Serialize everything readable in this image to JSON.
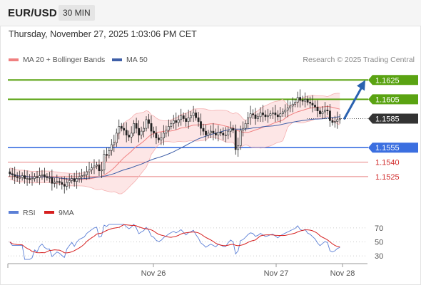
{
  "header": {
    "symbol": "EUR/USD",
    "timeframe": "30 MIN",
    "datetime": "Thursday, November 27, 2025 1:03:06 PM CET"
  },
  "colors": {
    "up": "#2e7d32",
    "down": "#c62828",
    "ma20": "#f08080",
    "bollinger_fill": "#fde2e2",
    "ma50": "#3f5fa8",
    "resistance": "#5aa312",
    "support": "#3b6fe0",
    "support_weak": "#e88080",
    "current": "#333333",
    "rsi": "#5b7fd6",
    "rsi_ma": "#d62020",
    "arrow": "#2a62b0"
  },
  "chart_data": [
    {
      "type": "candlestick",
      "legend": [
        {
          "name": "MA 20 + Bollinger Bands",
          "color": "#f08080"
        },
        {
          "name": "MA 50",
          "color": "#3f5fa8"
        }
      ],
      "source_note": "Research © 2025 Trading Central",
      "ylim": [
        1.1505,
        1.1637
      ],
      "x_ticks": [
        "Nov 26",
        "Nov 27",
        "Nov 28"
      ],
      "levels": [
        {
          "value": 1.1625,
          "label": "1.1625",
          "kind": "resistance"
        },
        {
          "value": 1.1605,
          "label": "1.1605",
          "kind": "resistance"
        },
        {
          "value": 1.1585,
          "label": "1.1585",
          "kind": "current"
        },
        {
          "value": 1.1555,
          "label": "1.1555",
          "kind": "support"
        },
        {
          "value": 1.154,
          "label": "1.1540",
          "kind": "support_weak"
        },
        {
          "value": 1.1525,
          "label": "1.1525",
          "kind": "support_weak"
        }
      ],
      "projection": {
        "from": 1.1585,
        "to": 1.1622
      },
      "close": [
        1.1528,
        1.1527,
        1.1525,
        1.1524,
        1.1524,
        1.1526,
        1.1523,
        1.1523,
        1.1522,
        1.1523,
        1.1525,
        1.1524,
        1.1526,
        1.1527,
        1.1525,
        1.1524,
        1.1524,
        1.1518,
        1.1519,
        1.152,
        1.1519,
        1.1517,
        1.1515,
        1.1519,
        1.1521,
        1.1523,
        1.152,
        1.1523,
        1.1525,
        1.1526,
        1.1527,
        1.153,
        1.1532,
        1.1534,
        1.1536,
        1.1537,
        1.1531,
        1.1532,
        1.1548,
        1.1547,
        1.1552,
        1.1558,
        1.156,
        1.157,
        1.1577,
        1.1575,
        1.1573,
        1.1568,
        1.1566,
        1.157,
        1.158,
        1.1575,
        1.1568,
        1.1572,
        1.1575,
        1.1584,
        1.158,
        1.1572,
        1.157,
        1.1565,
        1.1563,
        1.1565,
        1.157,
        1.1573,
        1.1577,
        1.158,
        1.1583,
        1.1581,
        1.1584,
        1.1588,
        1.1585,
        1.1582,
        1.1586,
        1.1588,
        1.1591,
        1.1586,
        1.1582,
        1.1575,
        1.1572,
        1.1568,
        1.157,
        1.1572,
        1.157,
        1.1568,
        1.1571,
        1.157,
        1.1568,
        1.1568,
        1.1572,
        1.1575,
        1.1573,
        1.1553,
        1.1557,
        1.1573,
        1.1575,
        1.158,
        1.1586,
        1.159,
        1.1589,
        1.1585,
        1.1587,
        1.1591,
        1.1589,
        1.1587,
        1.1588,
        1.159,
        1.1591,
        1.1589,
        1.1587,
        1.159,
        1.1592,
        1.1594,
        1.1596,
        1.1598,
        1.16,
        1.1602,
        1.1607,
        1.1604,
        1.1603,
        1.1605,
        1.1602,
        1.1601,
        1.1599,
        1.1597,
        1.1593,
        1.159,
        1.1592,
        1.1594,
        1.1593,
        1.1583,
        1.1581,
        1.1582,
        1.1584,
        1.1585
      ],
      "rsi_ylim": [
        22,
        78
      ],
      "rsi_ticks": [
        70,
        50,
        30
      ],
      "rsi_legend": [
        {
          "name": "RSI",
          "color": "#5b7fd6"
        },
        {
          "name": "9MA",
          "color": "#d62020"
        }
      ]
    }
  ]
}
